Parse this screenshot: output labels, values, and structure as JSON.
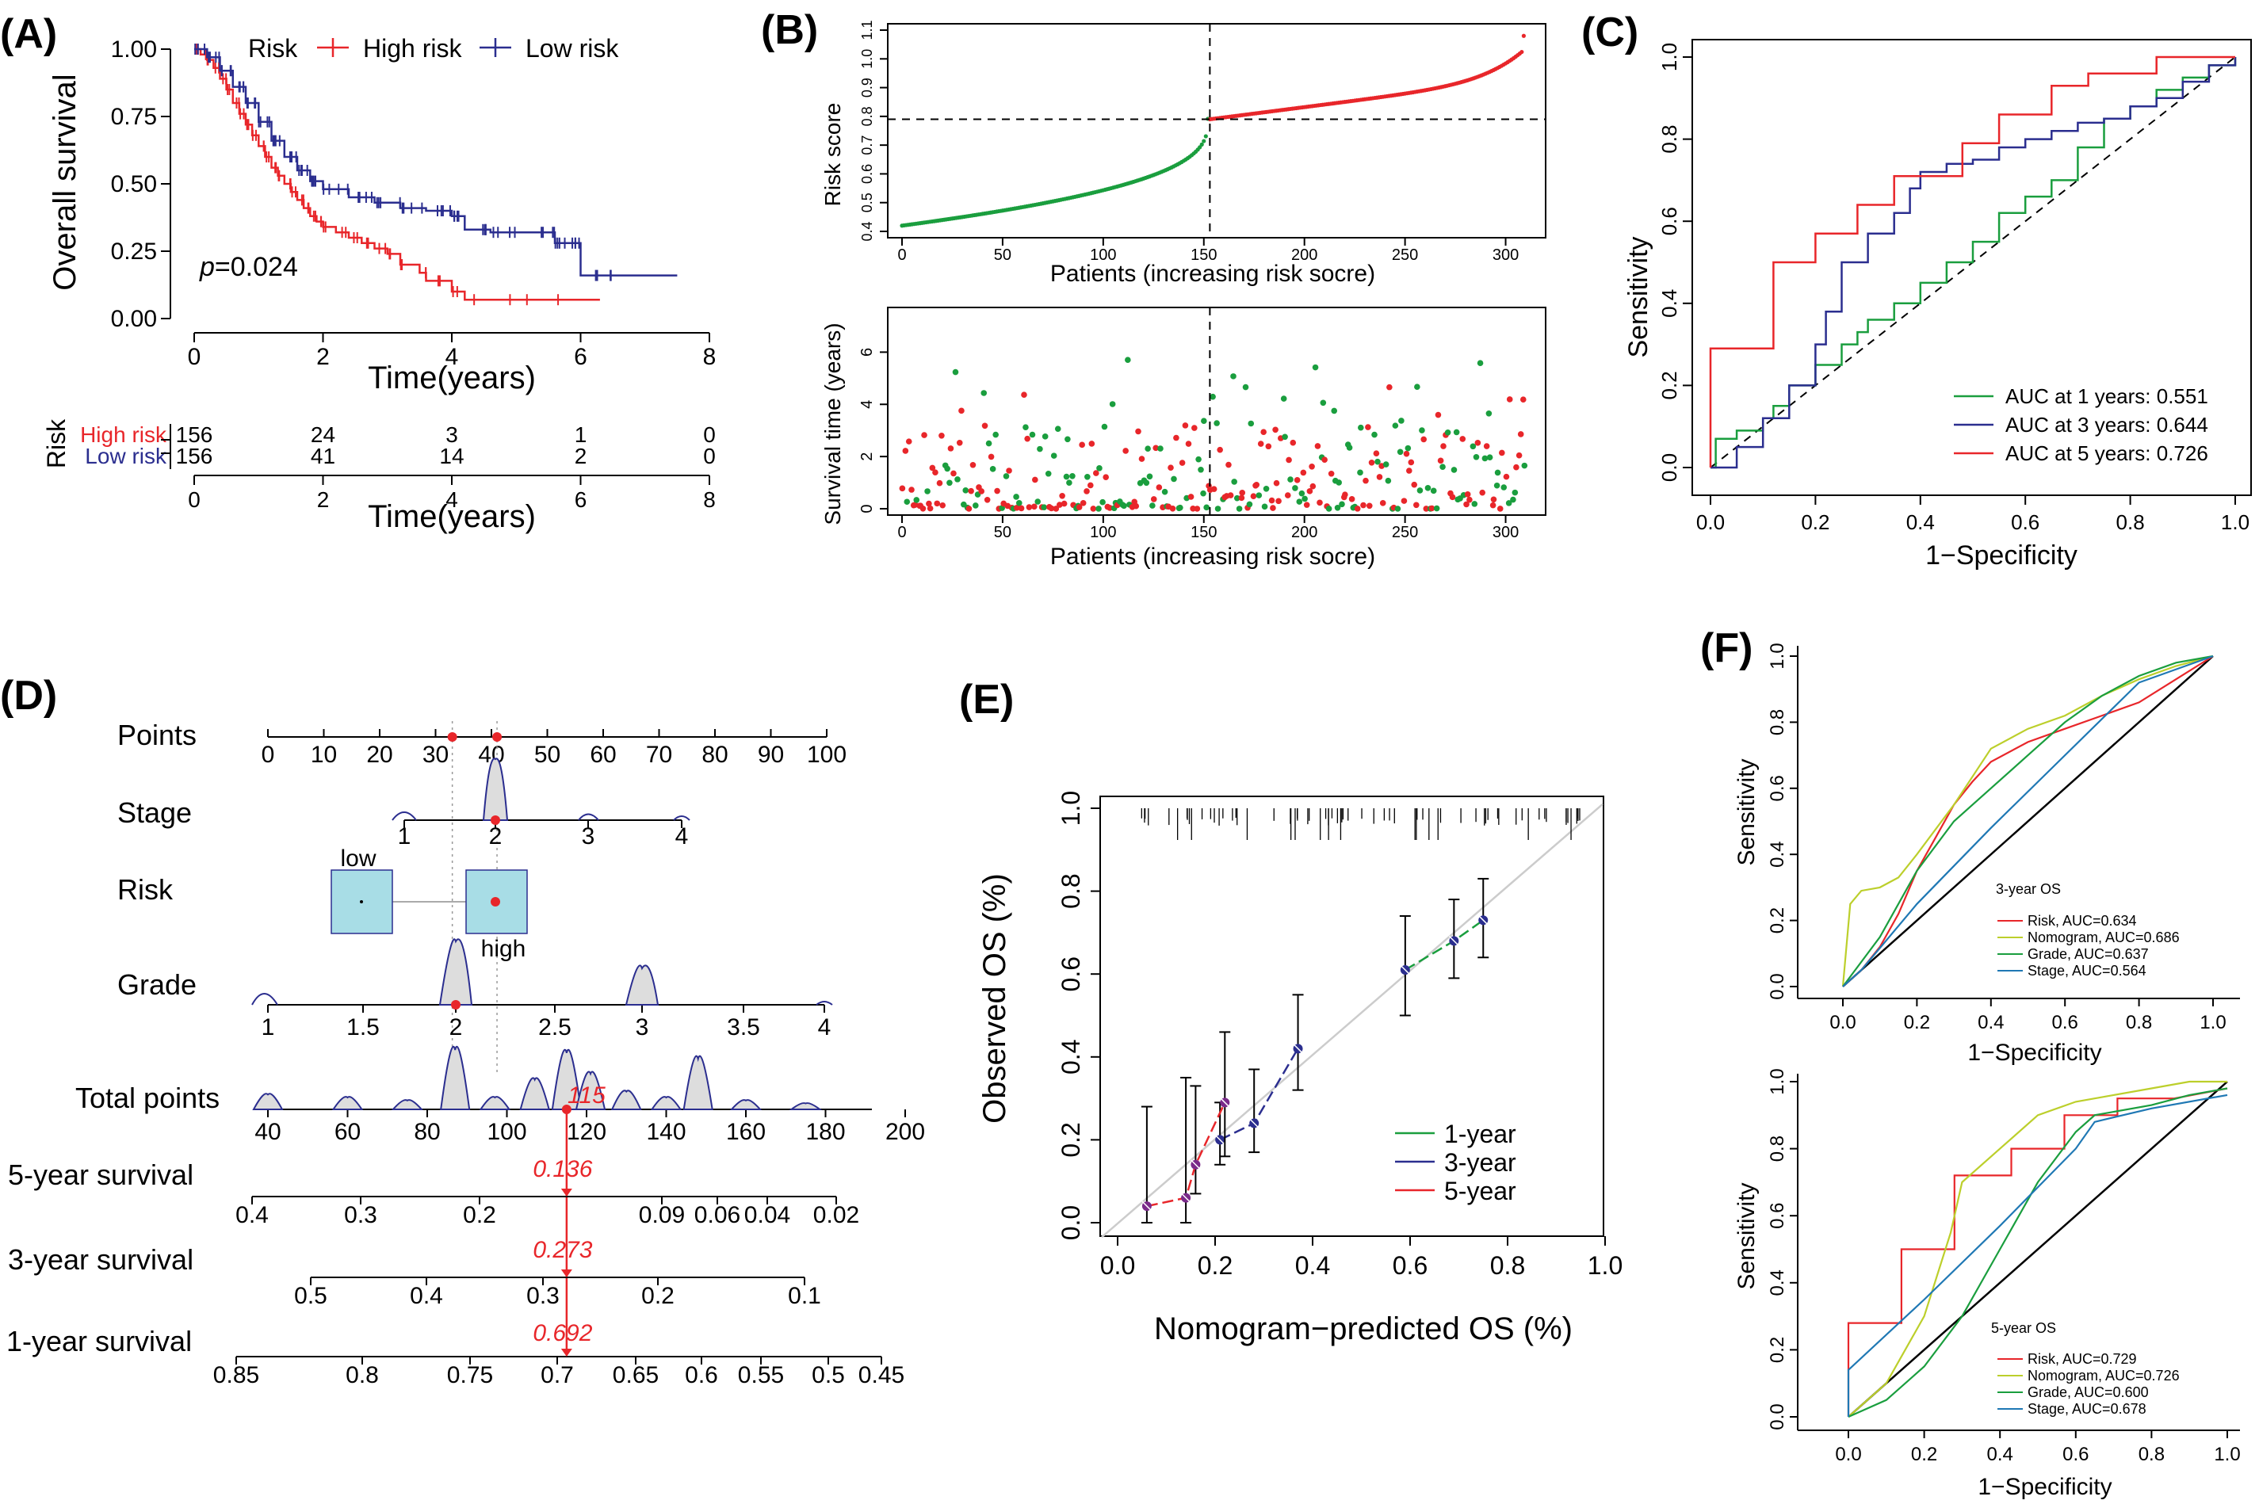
{
  "colors": {
    "high": "#e8262a",
    "low": "#2b2e8f",
    "green": "#1a9e3e",
    "red": "#e8262a",
    "blue": "#2b2e8f",
    "yellowgreen": "#bccf2b",
    "teal": "#1f78b4",
    "gray": "#444444",
    "box": "#a8dde6"
  },
  "panels": {
    "A": {
      "label": "(A)",
      "chart_data": {
        "type": "line",
        "title": "",
        "xlabel": "Time(years)",
        "ylabel": "Overall survival",
        "xlim": [
          0,
          8
        ],
        "ylim": [
          0,
          1
        ],
        "xticks": [
          "0",
          "2",
          "4",
          "6",
          "8"
        ],
        "yticks": [
          "0.00",
          "0.25",
          "0.50",
          "0.75",
          "1.00"
        ],
        "legend": {
          "title": "Risk",
          "entries": [
            "High risk",
            "Low risk"
          ]
        },
        "pvalue": "p=0.024",
        "p_italic": "p",
        "p_rest": "=0.024",
        "series": [
          {
            "name": "High risk",
            "x": [
              0,
              0.1,
              0.2,
              0.3,
              0.4,
              0.5,
              0.6,
              0.7,
              0.8,
              0.9,
              1.0,
              1.1,
              1.2,
              1.3,
              1.4,
              1.5,
              1.6,
              1.7,
              1.8,
              1.9,
              2.0,
              2.2,
              2.4,
              2.6,
              2.8,
              3.0,
              3.2,
              3.5,
              3.6,
              4.0,
              4.2,
              5.0,
              6.3
            ],
            "y": [
              1.0,
              0.98,
              0.96,
              0.93,
              0.89,
              0.85,
              0.8,
              0.76,
              0.72,
              0.68,
              0.64,
              0.6,
              0.56,
              0.53,
              0.5,
              0.47,
              0.44,
              0.41,
              0.38,
              0.36,
              0.34,
              0.32,
              0.3,
              0.28,
              0.26,
              0.24,
              0.2,
              0.17,
              0.14,
              0.1,
              0.07,
              0.07,
              0.07
            ]
          },
          {
            "name": "Low risk",
            "x": [
              0,
              0.2,
              0.4,
              0.6,
              0.8,
              1.0,
              1.2,
              1.4,
              1.6,
              1.8,
              2.0,
              2.4,
              2.8,
              3.2,
              3.6,
              4.0,
              4.2,
              4.6,
              5.0,
              5.6,
              5.8,
              6.0,
              7.5
            ],
            "y": [
              1.0,
              0.97,
              0.92,
              0.86,
              0.8,
              0.73,
              0.66,
              0.6,
              0.55,
              0.51,
              0.48,
              0.45,
              0.43,
              0.41,
              0.4,
              0.38,
              0.33,
              0.32,
              0.32,
              0.28,
              0.28,
              0.16,
              0.16
            ]
          }
        ]
      },
      "risk_table": {
        "title": "Risk",
        "rows": [
          {
            "name": "High risk",
            "values": [
              "156",
              "24",
              "3",
              "1",
              "0"
            ]
          },
          {
            "name": "Low risk",
            "values": [
              "156",
              "41",
              "14",
              "2",
              "0"
            ]
          }
        ],
        "xticks": [
          "0",
          "2",
          "4",
          "6",
          "8"
        ],
        "xlabel": "Time(years)"
      }
    },
    "B": {
      "label": "(B)",
      "top": {
        "type": "scatter",
        "xlabel": "Patients (increasing risk socre)",
        "ylabel": "Risk score",
        "xlim": [
          0,
          312
        ],
        "ylim": [
          0.4,
          1.1
        ],
        "xticks": [
          "0",
          "50",
          "100",
          "150",
          "200",
          "250",
          "300"
        ],
        "yticks": [
          "0.4",
          "0.5",
          "0.6",
          "0.7",
          "0.8",
          "0.9",
          "1.0",
          "1.1"
        ],
        "cutoff_x": 153,
        "cutoff_y": 0.79,
        "n": 310
      },
      "bottom": {
        "type": "scatter",
        "xlabel": "Patients (increasing risk socre)",
        "ylabel": "Survival time (years)",
        "xlim": [
          0,
          312
        ],
        "ylim": [
          0,
          7.5
        ],
        "xticks": [
          "0",
          "50",
          "100",
          "150",
          "200",
          "250",
          "300"
        ],
        "yticks": [
          "0",
          "2",
          "4",
          "6"
        ],
        "cutoff_x": 153
      }
    },
    "C": {
      "label": "(C)",
      "chart_data": {
        "type": "line",
        "xlabel": "1−Specificity",
        "ylabel": "Sensitivity",
        "xlim": [
          0,
          1
        ],
        "ylim": [
          0,
          1
        ],
        "xticks": [
          "0.0",
          "0.2",
          "0.4",
          "0.6",
          "0.8",
          "1.0"
        ],
        "yticks": [
          "0.0",
          "0.2",
          "0.4",
          "0.6",
          "0.8",
          "1.0"
        ],
        "series": [
          {
            "name": "AUC at 1 years: 0.551",
            "color": "green",
            "x": [
              0,
              0.01,
              0.05,
              0.1,
              0.12,
              0.15,
              0.2,
              0.25,
              0.28,
              0.3,
              0.35,
              0.4,
              0.45,
              0.5,
              0.55,
              0.6,
              0.65,
              0.7,
              0.75,
              0.8,
              0.85,
              0.9,
              0.95,
              1.0
            ],
            "y": [
              0,
              0.07,
              0.09,
              0.12,
              0.15,
              0.2,
              0.25,
              0.3,
              0.33,
              0.36,
              0.4,
              0.45,
              0.5,
              0.55,
              0.62,
              0.66,
              0.7,
              0.78,
              0.85,
              0.88,
              0.92,
              0.95,
              0.98,
              1.0
            ]
          },
          {
            "name": "AUC at 3 years: 0.644",
            "color": "blue",
            "x": [
              0,
              0.05,
              0.1,
              0.15,
              0.2,
              0.22,
              0.25,
              0.3,
              0.35,
              0.38,
              0.4,
              0.45,
              0.5,
              0.55,
              0.6,
              0.65,
              0.7,
              0.75,
              0.8,
              0.85,
              0.9,
              0.95,
              1.0
            ],
            "y": [
              0,
              0.05,
              0.12,
              0.2,
              0.3,
              0.38,
              0.5,
              0.57,
              0.62,
              0.68,
              0.72,
              0.74,
              0.75,
              0.78,
              0.8,
              0.82,
              0.84,
              0.85,
              0.88,
              0.9,
              0.94,
              0.98,
              1.0
            ]
          },
          {
            "name": "AUC at 5 years: 0.726",
            "color": "red",
            "x": [
              0,
              0,
              0.12,
              0.12,
              0.2,
              0.2,
              0.28,
              0.28,
              0.35,
              0.35,
              0.48,
              0.48,
              0.55,
              0.55,
              0.65,
              0.65,
              0.72,
              0.72,
              0.85,
              0.85,
              1.0
            ],
            "y": [
              0,
              0.29,
              0.29,
              0.5,
              0.5,
              0.57,
              0.57,
              0.64,
              0.64,
              0.71,
              0.71,
              0.79,
              0.79,
              0.86,
              0.86,
              0.93,
              0.93,
              0.96,
              0.96,
              1.0,
              1.0
            ]
          }
        ]
      }
    },
    "D": {
      "label": "(D)",
      "rows": [
        {
          "name": "Points",
          "ticks": [
            "0",
            "10",
            "20",
            "30",
            "40",
            "50",
            "60",
            "70",
            "80",
            "90",
            "100"
          ]
        },
        {
          "name": "Stage",
          "ticks": [
            "1",
            "2",
            "3",
            "4"
          ]
        },
        {
          "name": "Risk",
          "labels": [
            "low",
            "high"
          ]
        },
        {
          "name": "Grade",
          "ticks": [
            "1",
            "1.5",
            "2",
            "2.5",
            "3",
            "3.5",
            "4"
          ]
        },
        {
          "name": "Total points",
          "ticks": [
            "40",
            "60",
            "80",
            "100",
            "120",
            "140",
            "160",
            "180",
            "200"
          ],
          "value": "115"
        },
        {
          "name": "5-year survival",
          "ticks": [
            "0.4",
            "0.3",
            "0.2",
            "0.09",
            "0.06",
            "0.04",
            "0.02"
          ],
          "value": "0.136"
        },
        {
          "name": "3-year survival",
          "ticks": [
            "0.5",
            "0.4",
            "0.3",
            "0.2",
            "0.1"
          ],
          "value": "0.273"
        },
        {
          "name": "1-year survival",
          "ticks": [
            "0.85",
            "0.8",
            "0.75",
            "0.7",
            "0.65",
            "0.6",
            "0.55",
            "0.5",
            "0.45"
          ],
          "value": "0.692"
        }
      ]
    },
    "E": {
      "label": "(E)",
      "chart_data": {
        "type": "line",
        "xlabel": "Nomogram−predicted OS (%)",
        "ylabel": "Observed OS (%)",
        "xlim": [
          0,
          1
        ],
        "ylim": [
          0,
          1
        ],
        "xticks": [
          "0.0",
          "0.2",
          "0.4",
          "0.6",
          "0.8",
          "1.0"
        ],
        "yticks": [
          "0.0",
          "0.2",
          "0.4",
          "0.6",
          "0.8",
          "1.0"
        ],
        "series": [
          {
            "name": "1-year",
            "color": "green",
            "x": [
              0.59,
              0.69,
              0.75
            ],
            "y": [
              0.61,
              0.68,
              0.73
            ],
            "lo": [
              0.5,
              0.59,
              0.64
            ],
            "hi": [
              0.74,
              0.78,
              0.83
            ]
          },
          {
            "name": "3-year",
            "color": "blue",
            "x": [
              0.21,
              0.28,
              0.37
            ],
            "y": [
              0.2,
              0.24,
              0.42
            ],
            "lo": [
              0.14,
              0.17,
              0.32
            ],
            "hi": [
              0.29,
              0.37,
              0.55
            ]
          },
          {
            "name": "5-year",
            "color": "red",
            "x": [
              0.06,
              0.14,
              0.16,
              0.22
            ],
            "y": [
              0.04,
              0.06,
              0.14,
              0.29
            ],
            "lo": [
              0,
              0,
              0.07,
              0.16
            ],
            "hi": [
              0.28,
              0.35,
              0.33,
              0.46
            ]
          }
        ]
      }
    },
    "F": {
      "label": "(F)",
      "charts": [
        {
          "type": "line",
          "title": "3-year OS",
          "xlabel": "1−Specificity",
          "ylabel": "Sensitivity",
          "xticks": [
            "0.0",
            "0.2",
            "0.4",
            "0.6",
            "0.8",
            "1.0"
          ],
          "yticks": [
            "0.0",
            "0.2",
            "0.4",
            "0.6",
            "0.8",
            "1.0"
          ],
          "series": [
            {
              "name": "Risk, AUC=0.634",
              "color": "red",
              "x": [
                0,
                0.05,
                0.1,
                0.15,
                0.2,
                0.25,
                0.3,
                0.35,
                0.4,
                0.5,
                0.6,
                0.7,
                0.8,
                0.9,
                1.0
              ],
              "y": [
                0,
                0.05,
                0.12,
                0.22,
                0.35,
                0.45,
                0.55,
                0.62,
                0.68,
                0.74,
                0.78,
                0.82,
                0.86,
                0.93,
                1.0
              ]
            },
            {
              "name": "Nomogram, AUC=0.686",
              "color": "yellowgreen",
              "x": [
                0,
                0.02,
                0.05,
                0.1,
                0.15,
                0.2,
                0.3,
                0.4,
                0.5,
                0.6,
                0.7,
                0.8,
                0.9,
                1.0
              ],
              "y": [
                0,
                0.25,
                0.29,
                0.3,
                0.33,
                0.4,
                0.55,
                0.72,
                0.78,
                0.82,
                0.88,
                0.93,
                0.97,
                1.0
              ]
            },
            {
              "name": "Grade, AUC=0.637",
              "color": "green",
              "x": [
                0,
                0.1,
                0.2,
                0.3,
                0.4,
                0.5,
                0.6,
                0.7,
                0.8,
                0.9,
                1.0
              ],
              "y": [
                0,
                0.15,
                0.35,
                0.5,
                0.6,
                0.7,
                0.8,
                0.88,
                0.94,
                0.98,
                1.0
              ]
            },
            {
              "name": "Stage, AUC=0.564",
              "color": "teal",
              "x": [
                0,
                0.05,
                0.2,
                0.4,
                0.6,
                0.8,
                1.0
              ],
              "y": [
                0,
                0.05,
                0.25,
                0.48,
                0.7,
                0.92,
                1.0
              ]
            }
          ]
        },
        {
          "type": "line",
          "title": "5-year OS",
          "xlabel": "1−Specificity",
          "ylabel": "Sensitivity",
          "xticks": [
            "0.0",
            "0.2",
            "0.4",
            "0.6",
            "0.8",
            "1.0"
          ],
          "yticks": [
            "0.0",
            "0.2",
            "0.4",
            "0.6",
            "0.8",
            "1.0"
          ],
          "series": [
            {
              "name": "Risk, AUC=0.729",
              "color": "red",
              "x": [
                0,
                0,
                0.14,
                0.14,
                0.28,
                0.28,
                0.43,
                0.43,
                0.57,
                0.57,
                0.71,
                0.71,
                0.86,
                1.0
              ],
              "y": [
                0,
                0.28,
                0.28,
                0.5,
                0.5,
                0.72,
                0.72,
                0.8,
                0.8,
                0.9,
                0.9,
                0.95,
                0.95,
                0.98
              ]
            },
            {
              "name": "Nomogram, AUC=0.726",
              "color": "yellowgreen",
              "x": [
                0,
                0.1,
                0.2,
                0.27,
                0.3,
                0.4,
                0.5,
                0.6,
                0.7,
                0.8,
                0.9,
                1.0
              ],
              "y": [
                0,
                0.1,
                0.3,
                0.55,
                0.7,
                0.8,
                0.9,
                0.94,
                0.96,
                0.98,
                1.0,
                1.0
              ]
            },
            {
              "name": "Grade, AUC=0.600",
              "color": "green",
              "x": [
                0,
                0.1,
                0.2,
                0.3,
                0.4,
                0.5,
                0.6,
                0.65,
                0.8,
                0.9,
                1.0
              ],
              "y": [
                0,
                0.05,
                0.15,
                0.3,
                0.5,
                0.7,
                0.85,
                0.9,
                0.93,
                0.96,
                0.98
              ]
            },
            {
              "name": "Stage, AUC=0.678",
              "color": "teal",
              "x": [
                0,
                0,
                0.2,
                0.4,
                0.6,
                0.65,
                0.8,
                1.0
              ],
              "y": [
                0,
                0.14,
                0.35,
                0.57,
                0.8,
                0.88,
                0.92,
                0.96
              ]
            }
          ]
        }
      ]
    }
  }
}
